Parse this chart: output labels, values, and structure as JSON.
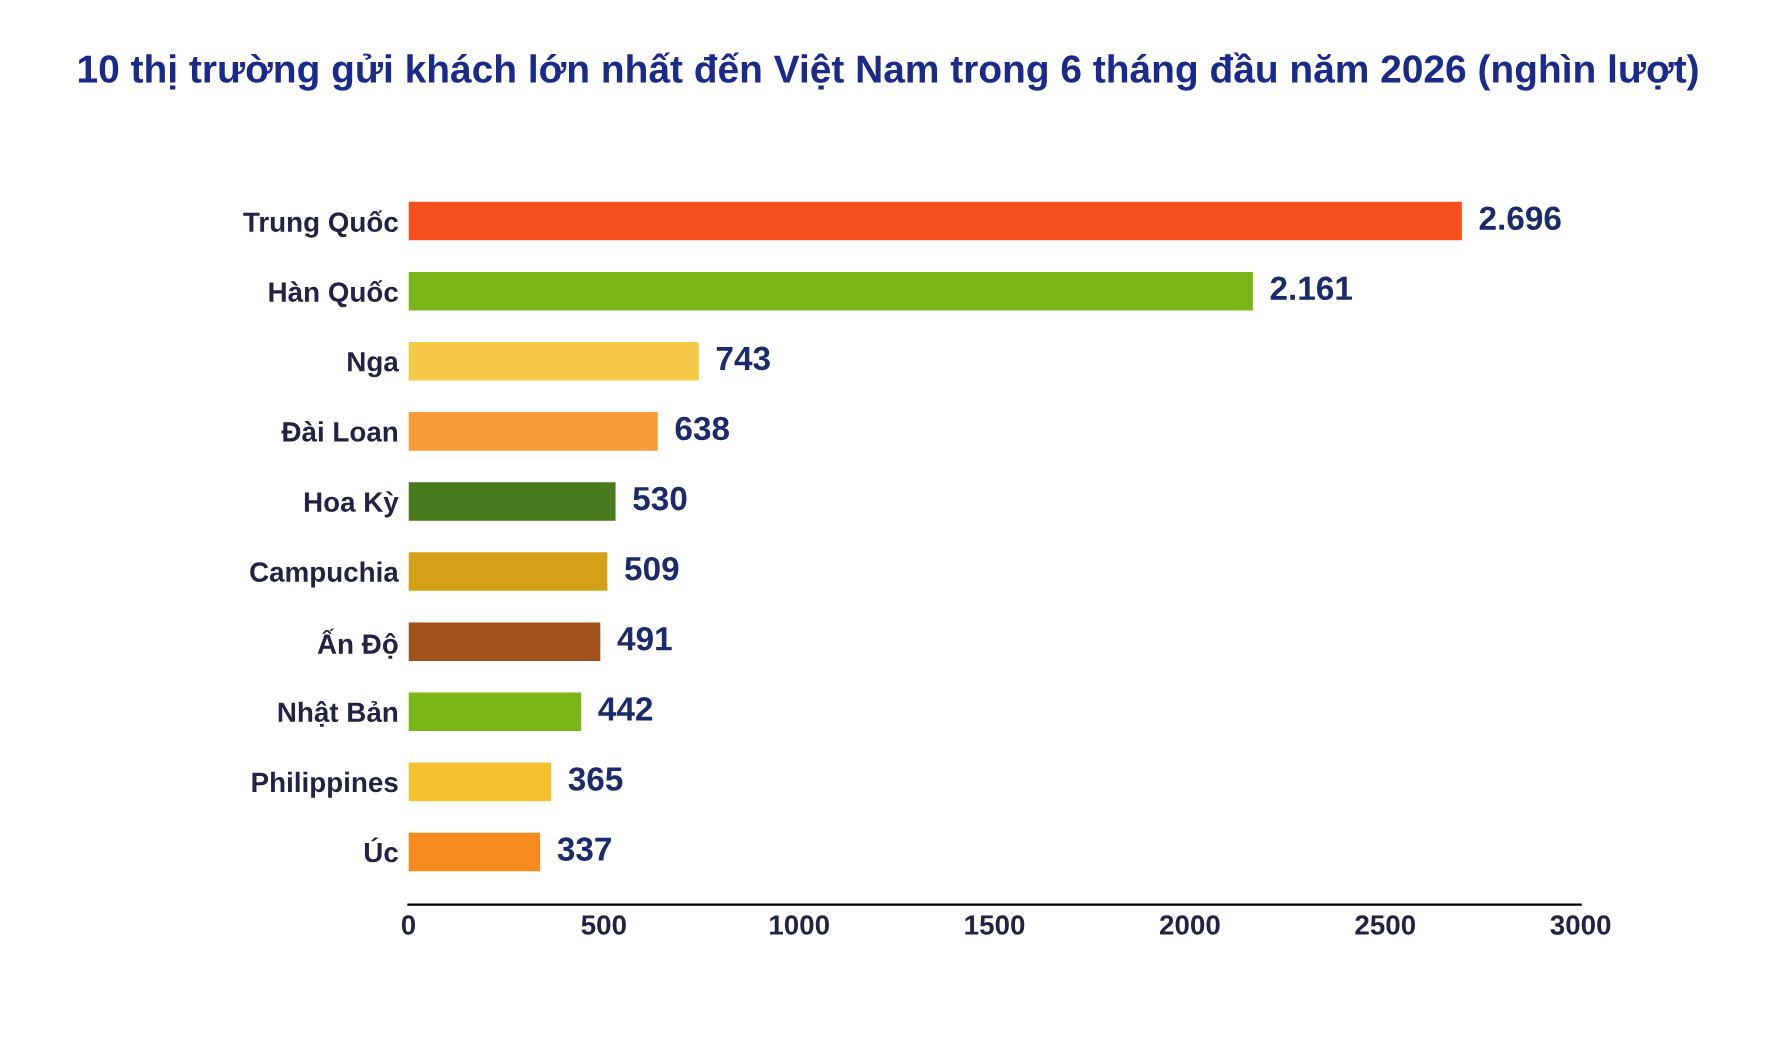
{
  "chart_data": {
    "type": "bar",
    "orientation": "horizontal",
    "title": "10 thị trường gửi khách lớn nhất đến Việt Nam trong 6 tháng đầu năm 2026 (nghìn lượt)",
    "categories": [
      "Trung Quốc",
      "Hàn Quốc",
      "Nga",
      "Đài Loan",
      "Hoa Kỳ",
      "Campuchia",
      "Ấn Độ",
      "Nhật Bản",
      "Philippines",
      "Úc"
    ],
    "values": [
      2696,
      2161,
      743,
      638,
      530,
      509,
      491,
      442,
      365,
      337
    ],
    "value_labels": [
      "2.696",
      "2.161",
      "743",
      "638",
      "530",
      "509",
      "491",
      "442",
      "365",
      "337"
    ],
    "colors": [
      "#f4511e",
      "#7cb518",
      "#f7c948",
      "#f79a3a",
      "#4a7a1e",
      "#d4a017",
      "#a0521a",
      "#7cb518",
      "#f7c231",
      "#f58a1f"
    ],
    "xlim": [
      0,
      3000
    ],
    "xticks": [
      0,
      500,
      1000,
      1500,
      2000,
      2500,
      3000
    ],
    "grid": false
  }
}
